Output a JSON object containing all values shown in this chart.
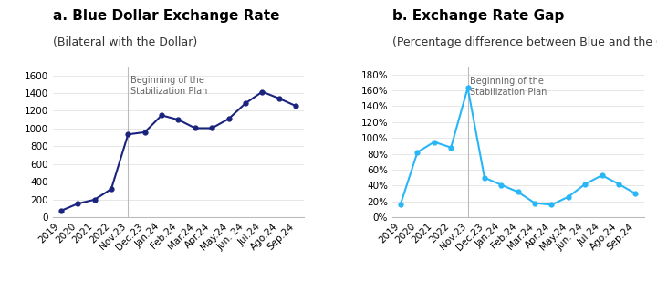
{
  "chart_a": {
    "title": "a. Blue Dollar Exchange Rate",
    "subtitle": "(Bilateral with the Dollar)",
    "x_labels": [
      "2019",
      "2020",
      "2021",
      "2022",
      "Nov.23",
      "Dec.23",
      "Jan.24",
      "Feb.24",
      "Mar.24",
      "Apr.24",
      "May.24",
      "Jun. 24",
      "Jul.24",
      "Ago.24",
      "Sep.24"
    ],
    "y_values": [
      75,
      155,
      200,
      320,
      935,
      960,
      1150,
      1100,
      1005,
      1005,
      1110,
      1285,
      1415,
      1340,
      1255
    ],
    "ylim": [
      0,
      1700
    ],
    "yticks": [
      0,
      200,
      400,
      600,
      800,
      1000,
      1200,
      1400,
      1600
    ],
    "vline_x": 4,
    "vline_label": "Beginning of the\nStabilization Plan",
    "line_color": "#1a237e",
    "marker": "o",
    "marker_size": 3.5
  },
  "chart_b": {
    "title": "b. Exchange Rate Gap",
    "subtitle": "(Percentage difference between Blue and the Official Dollar)",
    "x_labels": [
      "2019",
      "2020",
      "2021",
      "2022",
      "Nov.23",
      "Dec.23",
      "Jan.24",
      "Feb.24",
      "Mar.24",
      "Apr.24",
      "May.24",
      "Jun. 24",
      "Jul.24",
      "Ago.24",
      "Sep.24"
    ],
    "y_values": [
      0.17,
      0.82,
      0.95,
      0.88,
      1.63,
      0.5,
      0.41,
      0.32,
      0.18,
      0.16,
      0.26,
      0.42,
      0.53,
      0.42,
      0.3
    ],
    "ylim": [
      0,
      1.9
    ],
    "yticks": [
      0,
      0.2,
      0.4,
      0.6,
      0.8,
      1.0,
      1.2,
      1.4,
      1.6,
      1.8
    ],
    "ytick_labels": [
      "0%",
      "20%",
      "40%",
      "60%",
      "80%",
      "100%",
      "120%",
      "140%",
      "160%",
      "180%"
    ],
    "vline_x": 4,
    "vline_label": "Beginning of the\nStabilization Plan",
    "line_color": "#29b6f6",
    "marker": "o",
    "marker_size": 3.5
  },
  "background_color": "#ffffff",
  "annotation_fontsize": 7,
  "title_fontsize": 11,
  "subtitle_fontsize": 9,
  "tick_fontsize": 7.5
}
